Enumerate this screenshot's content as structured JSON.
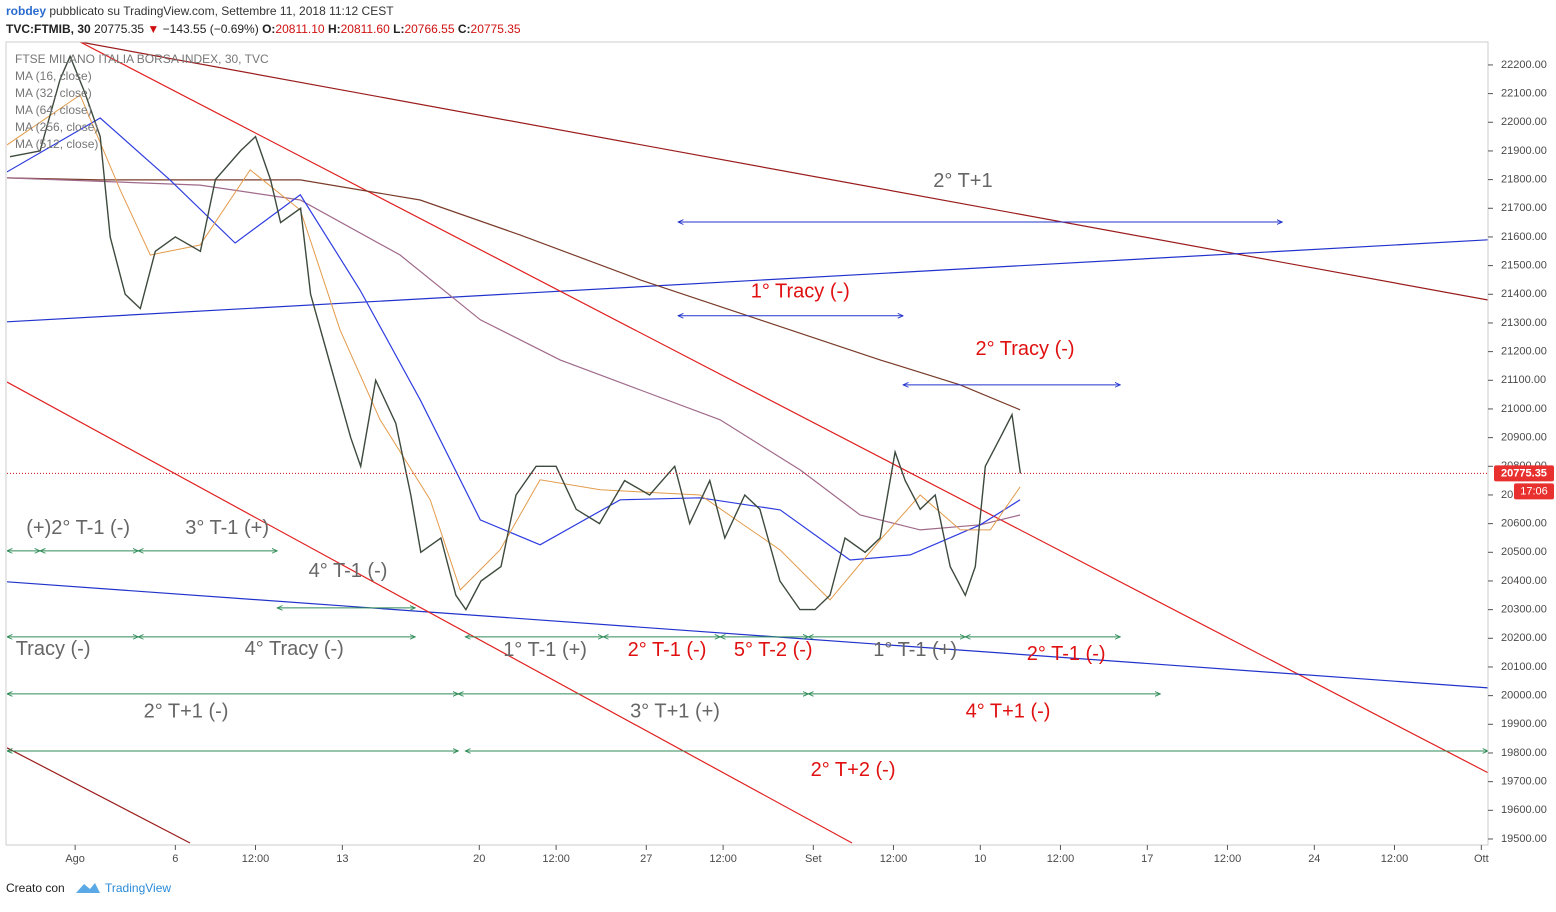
{
  "header": {
    "author": "robdey",
    "published": "pubblicato su TradingView.com, Settembre 11, 2018 11:12 CEST",
    "symbol": "TVC:FTMIB, 30",
    "price": "20775.35",
    "change": "−143.55 (−0.69%)",
    "open_label": "O:",
    "open": "20811.10",
    "high_label": "H:",
    "high": "20811.60",
    "low_label": "L:",
    "low": "20766.55",
    "close_label": "C:",
    "close": "20775.35"
  },
  "legend": {
    "title": "FTSE MILANO ITALIA BORSA INDEX, 30, TVC",
    "items": [
      "MA (16, close)",
      "MA (32, close)",
      "MA (64, close)",
      "MA (256, close)",
      "MA (512, close)"
    ]
  },
  "chart_data": {
    "type": "line",
    "xlim": [
      -2.04,
      42.3
    ],
    "ylim": [
      19479,
      22280
    ],
    "xticks": [
      {
        "value": 0,
        "label": "Ago"
      },
      {
        "value": 3.0,
        "label": "6"
      },
      {
        "value": 5.4,
        "label": "12:00"
      },
      {
        "value": 8.0,
        "label": "13"
      },
      {
        "value": 12.1,
        "label": "20"
      },
      {
        "value": 14.4,
        "label": "12:00"
      },
      {
        "value": 17.1,
        "label": "27"
      },
      {
        "value": 19.4,
        "label": "12:00"
      },
      {
        "value": 22.1,
        "label": "Set"
      },
      {
        "value": 24.5,
        "label": "12:00"
      },
      {
        "value": 27.1,
        "label": "10"
      },
      {
        "value": 29.5,
        "label": "12:00"
      },
      {
        "value": 32.1,
        "label": "17"
      },
      {
        "value": 34.5,
        "label": "12:00"
      },
      {
        "value": 37.1,
        "label": "24"
      },
      {
        "value": 39.5,
        "label": "12:00"
      },
      {
        "value": 42.1,
        "label": "Ott"
      }
    ],
    "yticks": [
      {
        "value": 19500,
        "label": "19500.00"
      },
      {
        "value": 19600,
        "label": "19600.00"
      },
      {
        "value": 19700,
        "label": "19700.00"
      },
      {
        "value": 19800,
        "label": "19800.00"
      },
      {
        "value": 19900,
        "label": "19900.00"
      },
      {
        "value": 20000,
        "label": "20000.00"
      },
      {
        "value": 20100,
        "label": "20100.00"
      },
      {
        "value": 20200,
        "label": "20200.00"
      },
      {
        "value": 20300,
        "label": "20300.00"
      },
      {
        "value": 20400,
        "label": "20400.00"
      },
      {
        "value": 20500,
        "label": "20500.00"
      },
      {
        "value": 20600,
        "label": "20600.00"
      },
      {
        "value": 20700,
        "label": "20700.00"
      },
      {
        "value": 20800,
        "label": "20800.00"
      },
      {
        "value": 20900,
        "label": "20900.00"
      },
      {
        "value": 21000,
        "label": "21000.00"
      },
      {
        "value": 21100,
        "label": "21100.00"
      },
      {
        "value": 21200,
        "label": "21200.00"
      },
      {
        "value": 21300,
        "label": "21300.00"
      },
      {
        "value": 21400,
        "label": "21400.00"
      },
      {
        "value": 21500,
        "label": "21500.00"
      },
      {
        "value": 21600,
        "label": "21600.00"
      },
      {
        "value": 21700,
        "label": "21700.00"
      },
      {
        "value": 21800,
        "label": "21800.00"
      },
      {
        "value": 21900,
        "label": "21900.00"
      },
      {
        "value": 22000,
        "label": "22000.00"
      },
      {
        "value": 22100,
        "label": "22100.00"
      },
      {
        "value": 22200,
        "label": "22200.00"
      }
    ],
    "last_price": 20775.35,
    "countdown": "17:06",
    "series": [
      {
        "color": "#3d4a3d",
        "width": 1.4,
        "x": [
          -1.95,
          -1.05,
          -0.45,
          -0.15,
          0.3,
          0.75,
          1.05,
          1.5,
          1.95,
          2.4,
          3.0,
          3.75,
          4.2,
          4.95,
          5.4,
          5.85,
          6.15,
          6.75,
          7.05,
          7.65,
          8.25,
          8.55,
          9.0,
          9.6,
          10.05,
          10.35,
          10.95,
          11.4,
          11.7,
          12.15,
          12.75,
          13.2,
          13.8,
          14.4,
          15.0,
          15.7,
          16.45,
          17.2,
          17.95,
          18.4,
          19.0,
          19.45,
          20.05,
          20.5,
          21.1,
          21.7,
          22.15,
          22.6,
          23.05,
          23.65,
          24.1,
          24.55,
          24.85,
          25.3,
          25.75,
          26.2,
          26.65,
          26.95,
          27.25,
          27.7,
          28.05,
          28.3
        ],
        "values": [
          21880,
          21900,
          22150,
          22230,
          22100,
          21950,
          21600,
          21400,
          21350,
          21550,
          21600,
          21550,
          21800,
          21900,
          21950,
          21800,
          21650,
          21700,
          21400,
          21150,
          20900,
          20800,
          21100,
          20950,
          20700,
          20500,
          20550,
          20350,
          20300,
          20400,
          20450,
          20700,
          20800,
          20800,
          20650,
          20600,
          20750,
          20700,
          20800,
          20600,
          20750,
          20550,
          20700,
          20650,
          20400,
          20300,
          20300,
          20350,
          20550,
          20500,
          20550,
          20850,
          20750,
          20650,
          20700,
          20450,
          20350,
          20450,
          20800,
          20900,
          20980,
          20775.35
        ]
      },
      {
        "color": "#e39b4b",
        "width": 1,
        "x": [
          -2.04,
          0.15,
          1.35,
          2.25,
          3.74,
          5.24,
          6.74,
          7.93,
          9.13,
          10.63,
          11.53,
          12.72,
          13.92,
          15.72,
          18.71,
          21.11,
          22.6,
          24.1,
          25.3,
          26.5,
          27.4,
          28.29
        ],
        "values": [
          21921,
          22095,
          21764,
          21537,
          21572,
          21834,
          21694,
          21276,
          20962,
          20683,
          20369,
          20508,
          20753,
          20718,
          20700,
          20508,
          20334,
          20543,
          20700,
          20578,
          20578,
          20728
        ]
      },
      {
        "color": "#2f3de0",
        "width": 1.2,
        "x": [
          -2.04,
          0.75,
          2.84,
          4.79,
          6.74,
          8.53,
          10.33,
          12.13,
          13.92,
          16.32,
          18.71,
          21.11,
          23.2,
          25.0,
          27.1,
          28.29
        ],
        "values": [
          21827,
          22015,
          21799,
          21579,
          21747,
          21415,
          21032,
          20613,
          20526,
          20683,
          20690,
          20648,
          20473,
          20491,
          20596,
          20683
        ]
      },
      {
        "color": "#a06a8a",
        "width": 1.2,
        "x": [
          -2.04,
          3.74,
          6.74,
          9.73,
          12.13,
          14.52,
          16.92,
          19.31,
          21.71,
          23.5,
          25.3,
          27.1,
          28.29
        ],
        "values": [
          21806,
          21781,
          21729,
          21537,
          21311,
          21171,
          21066,
          20962,
          20787,
          20630,
          20578,
          20596,
          20630
        ]
      },
      {
        "color": "#7a3b2a",
        "width": 1.2,
        "x": [
          -2.04,
          0.75,
          6.74,
          10.33,
          13.32,
          16.92,
          20.5,
          24.1,
          26.5,
          28.29
        ],
        "values": [
          21806,
          21799,
          21799,
          21729,
          21607,
          21450,
          21311,
          21171,
          21084,
          20997
        ]
      }
    ],
    "trendlines": [
      {
        "x": [
          0.15,
          42.3
        ],
        "y": [
          22280,
          21380
        ],
        "color": "#9b1c1c"
      },
      {
        "x": [
          -2.04,
          42.3
        ],
        "y": [
          21304,
          21590
        ],
        "color": "#2233cc"
      },
      {
        "x": [
          0.15,
          42.3
        ],
        "y": [
          22280,
          19731
        ],
        "color": "#e02020"
      },
      {
        "x": [
          -2.04,
          42.3
        ],
        "y": [
          20397,
          20027
        ],
        "color": "#2233cc"
      },
      {
        "x": [
          -2.04,
          23.26
        ],
        "y": [
          21094,
          19486
        ],
        "color": "#e02020"
      },
      {
        "x": [
          -2.04,
          3.44
        ],
        "y": [
          19818,
          19486
        ],
        "color": "#9b1c1c"
      }
    ],
    "arrows": [
      {
        "x": [
          18.05,
          36.14
        ],
        "y": 21652,
        "color": "#2233cc"
      },
      {
        "x": [
          18.05,
          24.79
        ],
        "y": 21325,
        "color": "#2233cc"
      },
      {
        "x": [
          24.79,
          31.29
        ],
        "y": 21084,
        "color": "#2233cc"
      },
      {
        "x": [
          -2.04,
          -1.05
        ],
        "y": 20505,
        "color": "#2e8b57"
      },
      {
        "x": [
          -1.05,
          1.89
        ],
        "y": 20505,
        "color": "#2e8b57"
      },
      {
        "x": [
          1.89,
          6.05
        ],
        "y": 20505,
        "color": "#2e8b57"
      },
      {
        "x": [
          6.05,
          10.18
        ],
        "y": 20306,
        "color": "#2e8b57"
      },
      {
        "x": [
          -2.04,
          1.89
        ],
        "y": 20205,
        "color": "#2e8b57"
      },
      {
        "x": [
          1.89,
          10.18
        ],
        "y": 20205,
        "color": "#2e8b57"
      },
      {
        "x": [
          11.68,
          15.81
        ],
        "y": 20205,
        "color": "#2e8b57"
      },
      {
        "x": [
          15.81,
          19.31
        ],
        "y": 20205,
        "color": "#2e8b57"
      },
      {
        "x": [
          19.31,
          21.95
        ],
        "y": 20205,
        "color": "#2e8b57"
      },
      {
        "x": [
          21.95,
          26.65
        ],
        "y": 20205,
        "color": "#2e8b57"
      },
      {
        "x": [
          26.65,
          31.29
        ],
        "y": 20205,
        "color": "#2e8b57"
      },
      {
        "x": [
          -2.04,
          11.47
        ],
        "y": 20006,
        "color": "#2e8b57"
      },
      {
        "x": [
          11.47,
          21.95
        ],
        "y": 20006,
        "color": "#2e8b57"
      },
      {
        "x": [
          21.95,
          32.49
        ],
        "y": 20006,
        "color": "#2e8b57"
      },
      {
        "x": [
          -2.04,
          11.47
        ],
        "y": 19807,
        "color": "#2e8b57"
      },
      {
        "x": [
          11.68,
          42.3
        ],
        "y": 19807,
        "color": "#2e8b57"
      }
    ],
    "annotations": [
      {
        "text": "2° T+1",
        "x": 26.58,
        "y": 21792,
        "color": "#666666"
      },
      {
        "text": "1° Tracy (-)",
        "x": 21.71,
        "y": 21408,
        "color": "#e01010"
      },
      {
        "text": "2° Tracy (-)",
        "x": 28.44,
        "y": 21206,
        "color": "#e01010"
      },
      {
        "text": "(+)2° T-1 (-)",
        "x": 0.09,
        "y": 20582,
        "color": "#666666"
      },
      {
        "text": "3° T-1 (+)",
        "x": 4.55,
        "y": 20582,
        "color": "#666666"
      },
      {
        "text": "4° T-1 (-)",
        "x": 8.17,
        "y": 20432,
        "color": "#666666"
      },
      {
        "text": "Tracy (-)",
        "x": -0.66,
        "y": 20160,
        "color": "#666666"
      },
      {
        "text": "4° Tracy (-)",
        "x": 6.56,
        "y": 20160,
        "color": "#666666"
      },
      {
        "text": "1° T-1 (+)",
        "x": 14.07,
        "y": 20156,
        "color": "#666666"
      },
      {
        "text": "2° T-1 (-)",
        "x": 17.72,
        "y": 20156,
        "color": "#e01010"
      },
      {
        "text": "5° T-2 (-)",
        "x": 20.9,
        "y": 20156,
        "color": "#e01010"
      },
      {
        "text": "1° T-1 (+)",
        "x": 25.15,
        "y": 20156,
        "color": "#666666"
      },
      {
        "text": "2° T-1 (-)",
        "x": 29.67,
        "y": 20142,
        "color": "#e01010"
      },
      {
        "text": "2° T+1 (-)",
        "x": 3.32,
        "y": 19943,
        "color": "#666666"
      },
      {
        "text": "3° T+1 (+)",
        "x": 17.96,
        "y": 19943,
        "color": "#666666"
      },
      {
        "text": "4° T+1 (-)",
        "x": 27.93,
        "y": 19943,
        "color": "#e01010"
      },
      {
        "text": "2° T+2 (-)",
        "x": 23.29,
        "y": 19738,
        "color": "#e01010"
      }
    ]
  },
  "footer": {
    "made_with": "Creato con",
    "brand": "TradingView"
  }
}
